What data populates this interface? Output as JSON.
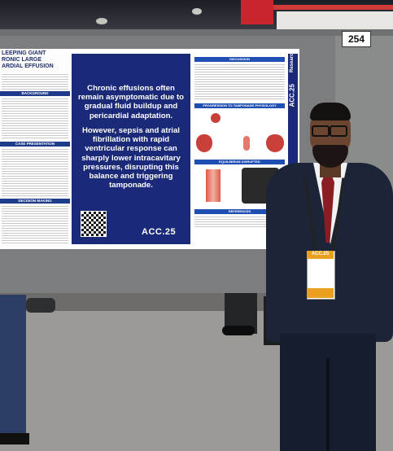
{
  "booth_number": "254",
  "poster": {
    "title_fragment": "LEEPING GIANT\nRONIC LARGE\nARDIAL EFFUSION",
    "left_sections": [
      "BACKGROUND",
      "CASE PRESENTATION",
      "DECISION MAKING"
    ],
    "center_text_1": "Chronic effusions often remain asymptomatic due to gradual fluid buildup and pericardial adaptation.",
    "center_text_2": "However, sepsis and atrial fibrillation with rapid ventricular response can sharply lower intracavitary pressures, disrupting this balance and triggering tamponade.",
    "center_logo": "ACC.25",
    "vertical_logo": "ACC.25",
    "vertical_tag": "Research",
    "right_sections": [
      "DISCUSSION",
      "PROGRESSION TO TAMPONADE PHYSIOLOGY",
      "EQUILIBRIUM DISRUPTED",
      "REFERENCES"
    ]
  },
  "badge": {
    "label": "ACC.25"
  },
  "colors": {
    "poster_navy": "#1b2a78",
    "section_blue": "#1f3b8c",
    "tie_red": "#8a1d24",
    "badge_orange": "#e8a01e"
  }
}
